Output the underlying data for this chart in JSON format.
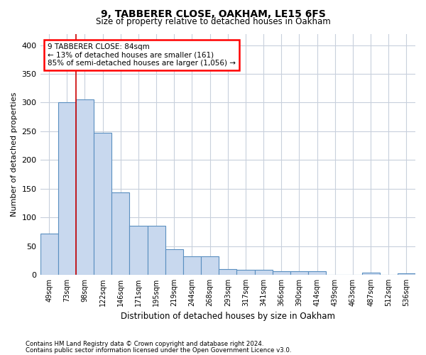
{
  "title": "9, TABBERER CLOSE, OAKHAM, LE15 6FS",
  "subtitle": "Size of property relative to detached houses in Oakham",
  "xlabel": "Distribution of detached houses by size in Oakham",
  "ylabel": "Number of detached properties",
  "categories": [
    "49sqm",
    "73sqm",
    "98sqm",
    "122sqm",
    "146sqm",
    "171sqm",
    "195sqm",
    "219sqm",
    "244sqm",
    "268sqm",
    "293sqm",
    "317sqm",
    "341sqm",
    "366sqm",
    "390sqm",
    "414sqm",
    "439sqm",
    "463sqm",
    "487sqm",
    "512sqm",
    "536sqm"
  ],
  "values": [
    72,
    300,
    305,
    248,
    144,
    85,
    85,
    44,
    32,
    32,
    10,
    8,
    8,
    6,
    6,
    6,
    0,
    0,
    4,
    0,
    3
  ],
  "bar_color": "#c8d8ee",
  "bar_edge_color": "#5a8fc0",
  "annotation_line1": "9 TABBERER CLOSE: 84sqm",
  "annotation_line2": "← 13% of detached houses are smaller (161)",
  "annotation_line3": "85% of semi-detached houses are larger (1,056) →",
  "vline_color": "#cc0000",
  "ylim": [
    0,
    420
  ],
  "yticks": [
    0,
    50,
    100,
    150,
    200,
    250,
    300,
    350,
    400
  ],
  "background_color": "#ffffff",
  "grid_color": "#c8d0dc",
  "footnote1": "Contains HM Land Registry data © Crown copyright and database right 2024.",
  "footnote2": "Contains public sector information licensed under the Open Government Licence v3.0."
}
